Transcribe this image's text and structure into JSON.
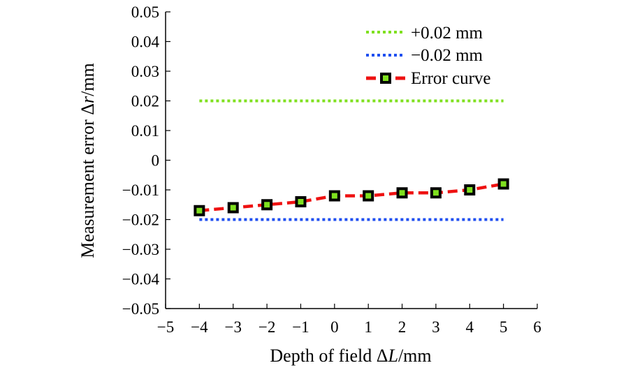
{
  "chart_data": {
    "type": "line",
    "title": "",
    "xlabel": "Depth of field ΔL/mm",
    "xlabel_parts": {
      "prefix": "Depth of field Δ",
      "italic": "L",
      "suffix": "/mm"
    },
    "ylabel": "Measurement error Δr/mm",
    "ylabel_parts": {
      "prefix": "Measurement error Δ",
      "italic": "r",
      "suffix": "/mm"
    },
    "xlim": [
      -5,
      6
    ],
    "ylim": [
      -0.05,
      0.05
    ],
    "x_ticks": [
      -5,
      -4,
      -3,
      -2,
      -1,
      0,
      1,
      2,
      3,
      4,
      5,
      6
    ],
    "x_tick_labels": [
      "−5",
      "−4",
      "−3",
      "−2",
      "−1",
      "0",
      "1",
      "2",
      "3",
      "4",
      "5",
      "6"
    ],
    "y_ticks": [
      0.05,
      0.04,
      0.03,
      0.02,
      0.01,
      0,
      -0.01,
      -0.02,
      -0.03,
      -0.04,
      -0.05
    ],
    "y_tick_labels": [
      "0.05",
      "0.04",
      "0.03",
      "0.02",
      "0.01",
      "0",
      "−0.01",
      "−0.02",
      "−0.03",
      "−0.04",
      "−0.05"
    ],
    "grid": false,
    "legend_position": "top-right",
    "series": [
      {
        "name": "+0.02 mm",
        "style": "dotted",
        "color": "#7fe01f",
        "x": [
          -4,
          5
        ],
        "y": [
          0.02,
          0.02
        ]
      },
      {
        "name": "−0.02 mm",
        "style": "dotted",
        "color": "#1f4ff0",
        "x": [
          -4,
          5
        ],
        "y": [
          -0.02,
          -0.02
        ]
      },
      {
        "name": "Error curve",
        "style": "dashed",
        "color": "#ee1111",
        "marker": "square",
        "marker_edge_color": "#000000",
        "marker_face_color": "#7fe01f",
        "x": [
          -4,
          -3,
          -2,
          -1,
          0,
          1,
          2,
          3,
          4,
          5
        ],
        "y": [
          -0.017,
          -0.016,
          -0.015,
          -0.014,
          -0.012,
          -0.012,
          -0.011,
          -0.011,
          -0.01,
          -0.008
        ]
      }
    ]
  }
}
